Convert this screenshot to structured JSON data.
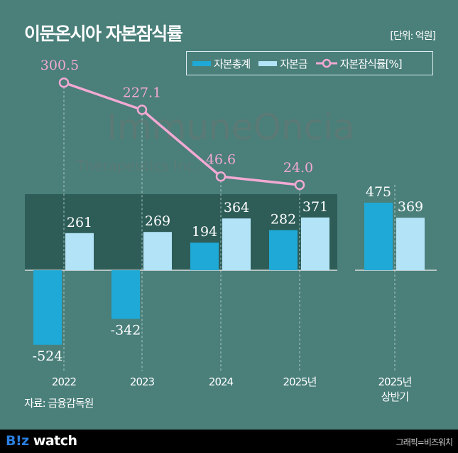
{
  "header": {
    "title": "이문온시아 자본잠식률",
    "unit": "[단위: 억원]"
  },
  "watermark": {
    "line1": "ImmuneOncia",
    "line2": "Therapeutics Inc."
  },
  "chart_data": {
    "type": "bar",
    "title": "이문온시아 자본잠식률",
    "categories": [
      "2022",
      "2023",
      "2024",
      "2025년",
      "2025년 상반기"
    ],
    "category_lines": [
      [
        "2022"
      ],
      [
        "2023"
      ],
      [
        "2024"
      ],
      [
        "2025년"
      ],
      [
        "2025년",
        "상반기"
      ]
    ],
    "series": [
      {
        "name": "자본총계",
        "type": "bar",
        "color": "#1fa9d6",
        "values": [
          -524,
          -342,
          194,
          282,
          475
        ],
        "labels": [
          "-524",
          "-342",
          "194",
          "282",
          "475"
        ]
      },
      {
        "name": "자본금",
        "type": "bar",
        "color": "#b3e3f7",
        "values": [
          261,
          269,
          364,
          371,
          369
        ],
        "labels": [
          "261",
          "269",
          "364",
          "371",
          "369"
        ]
      },
      {
        "name": "자본잠식률[%]",
        "type": "line",
        "color": "#f2a9d3",
        "values": [
          300.5,
          227.1,
          46.6,
          24.0,
          null
        ],
        "labels": [
          "300.5",
          "227.1",
          "46.6",
          "24.0",
          ""
        ]
      }
    ],
    "legend": "top-right",
    "grid": false
  },
  "legend": [
    "자본총계",
    "자본금",
    "자본잠식률[%]"
  ],
  "source": "자료: 금융감독원",
  "footer": {
    "brand_b": "B!z",
    "brand_w": " watch",
    "credit": "그래픽=비즈워치"
  }
}
